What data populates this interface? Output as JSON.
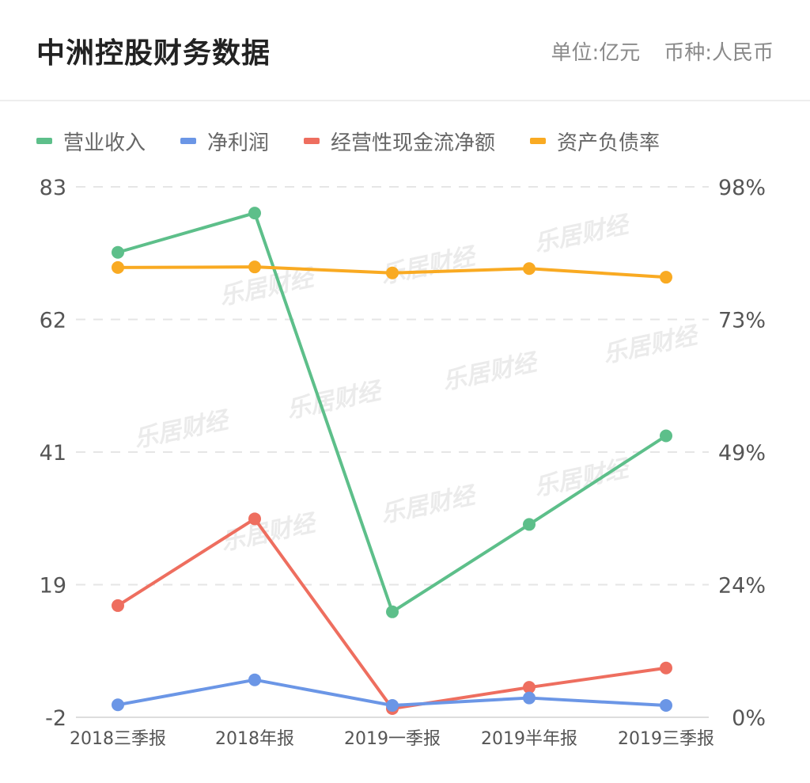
{
  "header": {
    "title": "中洲控股财务数据",
    "unit": "单位:亿元",
    "currency": "币种:人民币"
  },
  "watermark": "乐居财经",
  "chart_data": {
    "type": "line",
    "categories": [
      "2018三季报",
      "2018年报",
      "2019一季报",
      "2019半年报",
      "2019三季报"
    ],
    "y_left": {
      "ticks": [
        "83",
        "62",
        "41",
        "19",
        "-2"
      ],
      "range": [
        -2,
        83
      ]
    },
    "y_right": {
      "ticks": [
        "98%",
        "73%",
        "49%",
        "24%",
        "0%"
      ],
      "range": [
        0,
        98
      ]
    },
    "grid": true,
    "legend_position": "top-left",
    "series": [
      {
        "name": "营业收入",
        "color": "#5dbf8a",
        "axis": "left",
        "values": [
          72.5,
          78.8,
          14.9,
          28.9,
          43.1
        ]
      },
      {
        "name": "净利润",
        "color": "#6b96e6",
        "axis": "left",
        "values": [
          0.0,
          4.0,
          -0.1,
          1.1,
          -0.1
        ]
      },
      {
        "name": "经营性现金流净额",
        "color": "#ee6e5f",
        "axis": "left",
        "values": [
          15.9,
          29.8,
          -0.6,
          2.8,
          5.9
        ]
      },
      {
        "name": "资产负债率",
        "color": "#f9aa22",
        "axis": "right",
        "unit": "%",
        "values": [
          83.1,
          83.2,
          82.1,
          82.9,
          81.3
        ]
      }
    ]
  }
}
